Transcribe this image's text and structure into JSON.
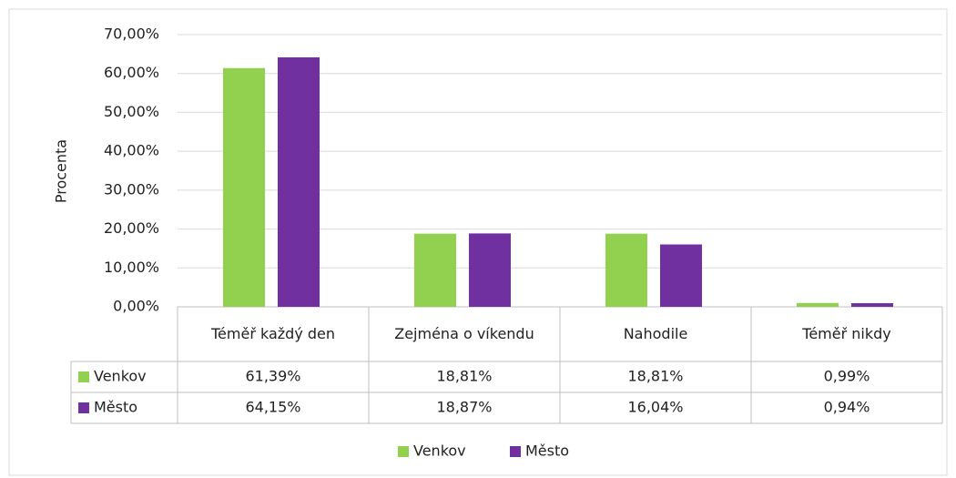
{
  "chart_data": {
    "type": "bar",
    "y_label": "Procenta",
    "categories": [
      "Téměř každý den",
      "Zejména o víkendu",
      "Nahodile",
      "Téměř nikdy"
    ],
    "series": [
      {
        "name": "Venkov",
        "color": "#92d050",
        "values": [
          61.39,
          18.81,
          18.81,
          0.99
        ],
        "value_labels": [
          "61,39%",
          "18,81%",
          "18,81%",
          "0,99%"
        ]
      },
      {
        "name": "Město",
        "color": "#7030a0",
        "values": [
          64.15,
          18.87,
          16.04,
          0.94
        ],
        "value_labels": [
          "64,15%",
          "18,87%",
          "16,04%",
          "0,94%"
        ]
      }
    ],
    "ylim": [
      0,
      70
    ],
    "yticks": [
      {
        "value": 0,
        "label": "0,00%"
      },
      {
        "value": 10,
        "label": "10,00%"
      },
      {
        "value": 20,
        "label": "20,00%"
      },
      {
        "value": 30,
        "label": "30,00%"
      },
      {
        "value": 40,
        "label": "40,00%"
      },
      {
        "value": 50,
        "label": "50,00%"
      },
      {
        "value": 60,
        "label": "60,00%"
      },
      {
        "value": 70,
        "label": "70,00%"
      }
    ],
    "grid": true,
    "legend": "bottom"
  }
}
